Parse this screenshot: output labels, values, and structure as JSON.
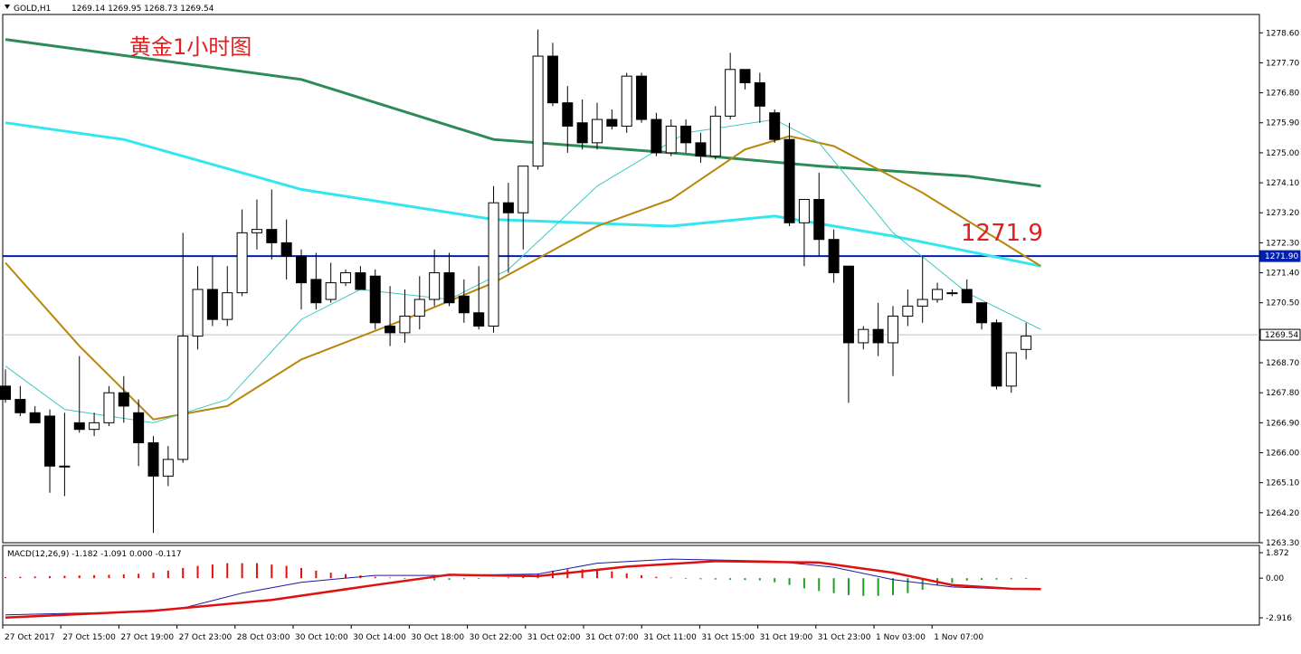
{
  "chart_data": [
    {
      "type": "candlestick",
      "symbol_label": "GOLD,H1",
      "ohlc_label": "1269.14 1269.95 1268.73 1269.54",
      "annotation": "黄金1小时图",
      "level_annotation": "1271.9",
      "ylim": [
        1263.3,
        1279.15
      ],
      "y_ticks": [
        "1278.60",
        "1277.70",
        "1276.80",
        "1275.90",
        "1275.00",
        "1274.10",
        "1273.20",
        "1272.30",
        "1271.40",
        "1270.50",
        "1269.60",
        "1268.70",
        "1267.80",
        "1266.90",
        "1266.00",
        "1265.10",
        "1264.20",
        "1263.30"
      ],
      "horizontal_line": {
        "value": 1271.9,
        "label": "1271.90",
        "color": "#0020b0"
      },
      "price_line": {
        "value": 1269.54,
        "label": "1269.54"
      },
      "x_labels": [
        "27 Oct 2017",
        "27 Oct 15:00",
        "27 Oct 19:00",
        "27 Oct 23:00",
        "28 Oct 03:00",
        "30 Oct 10:00",
        "30 Oct 14:00",
        "30 Oct 18:00",
        "30 Oct 22:00",
        "31 Oct 02:00",
        "31 Oct 07:00",
        "31 Oct 11:00",
        "31 Oct 15:00",
        "31 Oct 19:00",
        "31 Oct 23:00",
        "1 Nov 03:00",
        "1 Nov 07:00"
      ],
      "candles": [
        [
          1268.0,
          1268.5,
          1267.6,
          1267.5
        ],
        [
          1267.6,
          1268.0,
          1267.2,
          1267.1
        ],
        [
          1267.2,
          1267.4,
          1266.9,
          1267.1
        ],
        [
          1267.1,
          1267.3,
          1265.6,
          1264.8
        ],
        [
          1265.6,
          1267.2,
          1265.6,
          1264.7
        ],
        [
          1266.9,
          1268.9,
          1266.7,
          1266.6
        ],
        [
          1266.7,
          1267.2,
          1266.9,
          1266.5
        ],
        [
          1266.9,
          1268.0,
          1267.8,
          1266.8
        ],
        [
          1267.8,
          1268.3,
          1267.4,
          1266.9
        ],
        [
          1267.2,
          1267.6,
          1266.3,
          1265.6
        ],
        [
          1266.3,
          1266.5,
          1265.3,
          1263.6
        ],
        [
          1265.3,
          1266.2,
          1265.8,
          1265.0
        ],
        [
          1265.8,
          1272.6,
          1269.5,
          1265.7
        ],
        [
          1269.5,
          1271.6,
          1270.9,
          1269.1
        ],
        [
          1270.9,
          1271.9,
          1270.0,
          1269.8
        ],
        [
          1270.0,
          1271.6,
          1270.8,
          1269.8
        ],
        [
          1270.8,
          1273.3,
          1272.6,
          1270.7
        ],
        [
          1272.6,
          1273.6,
          1272.7,
          1272.1
        ],
        [
          1272.7,
          1273.9,
          1272.3,
          1271.8
        ],
        [
          1272.3,
          1273.0,
          1271.9,
          1271.2
        ],
        [
          1271.9,
          1272.1,
          1271.1,
          1270.3
        ],
        [
          1271.2,
          1272.0,
          1270.5,
          1270.3
        ],
        [
          1270.6,
          1271.7,
          1271.1,
          1270.5
        ],
        [
          1271.1,
          1271.5,
          1271.4,
          1271.0
        ],
        [
          1271.4,
          1271.6,
          1270.9,
          1270.9
        ],
        [
          1271.3,
          1271.5,
          1269.9,
          1269.7
        ],
        [
          1269.8,
          1271.0,
          1269.6,
          1269.2
        ],
        [
          1269.6,
          1270.9,
          1270.1,
          1269.3
        ],
        [
          1270.1,
          1271.3,
          1270.6,
          1269.7
        ],
        [
          1270.6,
          1272.1,
          1271.4,
          1270.4
        ],
        [
          1271.4,
          1272.0,
          1270.5,
          1270.4
        ],
        [
          1270.7,
          1271.2,
          1270.2,
          1269.9
        ],
        [
          1270.2,
          1271.6,
          1269.8,
          1269.7
        ],
        [
          1269.8,
          1274.0,
          1273.5,
          1269.6
        ],
        [
          1273.5,
          1274.1,
          1273.2,
          1271.4
        ],
        [
          1273.2,
          1274.6,
          1274.6,
          1272.1
        ],
        [
          1274.6,
          1278.7,
          1277.9,
          1274.5
        ],
        [
          1277.9,
          1278.3,
          1276.5,
          1276.4
        ],
        [
          1276.5,
          1277.0,
          1275.8,
          1275.0
        ],
        [
          1275.9,
          1276.6,
          1275.3,
          1275.1
        ],
        [
          1275.3,
          1276.5,
          1276.0,
          1275.1
        ],
        [
          1276.0,
          1276.3,
          1275.8,
          1275.7
        ],
        [
          1275.8,
          1277.4,
          1277.3,
          1275.6
        ],
        [
          1277.3,
          1277.4,
          1276.0,
          1275.9
        ],
        [
          1276.0,
          1276.2,
          1275.0,
          1274.9
        ],
        [
          1275.0,
          1276.0,
          1275.8,
          1274.9
        ],
        [
          1275.8,
          1276.0,
          1275.3,
          1275.0
        ],
        [
          1275.3,
          1275.6,
          1274.9,
          1274.7
        ],
        [
          1274.9,
          1276.4,
          1276.1,
          1274.8
        ],
        [
          1276.1,
          1278.0,
          1277.5,
          1276.0
        ],
        [
          1277.5,
          1277.5,
          1277.1,
          1276.9
        ],
        [
          1277.1,
          1277.4,
          1276.4,
          1275.9
        ],
        [
          1276.2,
          1276.3,
          1275.4,
          1275.3
        ],
        [
          1275.4,
          1275.9,
          1272.9,
          1272.8
        ],
        [
          1272.9,
          1273.5,
          1273.6,
          1271.6
        ],
        [
          1273.6,
          1274.4,
          1272.4,
          1271.9
        ],
        [
          1272.4,
          1272.7,
          1271.4,
          1271.1
        ],
        [
          1271.6,
          1271.6,
          1269.3,
          1267.5
        ],
        [
          1269.3,
          1269.8,
          1269.7,
          1269.1
        ],
        [
          1269.7,
          1270.5,
          1269.3,
          1268.9
        ],
        [
          1269.3,
          1270.4,
          1270.1,
          1268.3
        ],
        [
          1270.1,
          1270.9,
          1270.4,
          1269.8
        ],
        [
          1270.4,
          1271.9,
          1270.6,
          1269.9
        ],
        [
          1270.6,
          1271.1,
          1270.9,
          1270.5
        ],
        [
          1270.8,
          1270.9,
          1270.8,
          1270.7
        ],
        [
          1270.9,
          1271.2,
          1270.5,
          1270.5
        ],
        [
          1270.5,
          1270.5,
          1269.9,
          1269.7
        ],
        [
          1269.9,
          1270.0,
          1268.0,
          1267.9
        ],
        [
          1268.0,
          1269.0,
          1269.0,
          1267.8
        ],
        [
          1269.1,
          1269.9,
          1269.5,
          1268.8
        ]
      ],
      "moving_averages": [
        {
          "color": "#2e8b57",
          "width": 3,
          "points": [
            [
              0,
              1278.4
            ],
            [
              20,
              1277.2
            ],
            [
              33,
              1275.4
            ],
            [
              45,
              1275.0
            ],
            [
              55,
              1274.6
            ],
            [
              65,
              1274.3
            ],
            [
              70,
              1274.0
            ]
          ]
        },
        {
          "color": "#33e6f0",
          "width": 3,
          "points": [
            [
              0,
              1275.9
            ],
            [
              8,
              1275.4
            ],
            [
              20,
              1273.9
            ],
            [
              33,
              1273.0
            ],
            [
              45,
              1272.8
            ],
            [
              52,
              1273.1
            ],
            [
              60,
              1272.5
            ],
            [
              70,
              1271.6
            ]
          ]
        },
        {
          "color": "#b8860b",
          "width": 2,
          "points": [
            [
              0,
              1271.7
            ],
            [
              5,
              1269.2
            ],
            [
              10,
              1267.0
            ],
            [
              15,
              1267.4
            ],
            [
              20,
              1268.8
            ],
            [
              27,
              1270.0
            ],
            [
              33,
              1271.1
            ],
            [
              40,
              1272.8
            ],
            [
              45,
              1273.6
            ],
            [
              50,
              1275.1
            ],
            [
              53,
              1275.5
            ],
            [
              56,
              1275.2
            ],
            [
              62,
              1273.8
            ],
            [
              70,
              1271.6
            ]
          ]
        },
        {
          "color": "#40c8c0",
          "width": 1,
          "points": [
            [
              0,
              1268.6
            ],
            [
              4,
              1267.3
            ],
            [
              10,
              1266.9
            ],
            [
              15,
              1267.6
            ],
            [
              20,
              1270.0
            ],
            [
              24,
              1270.9
            ],
            [
              30,
              1270.6
            ],
            [
              34,
              1271.5
            ],
            [
              40,
              1274.0
            ],
            [
              46,
              1275.6
            ],
            [
              52,
              1276.0
            ],
            [
              55,
              1275.3
            ],
            [
              60,
              1272.6
            ],
            [
              65,
              1270.8
            ],
            [
              70,
              1269.7
            ]
          ]
        }
      ]
    },
    {
      "type": "macd",
      "label": "MACD(12,26,9) -1.182 -1.091 0.000 -0.117",
      "ylim": [
        -2.916,
        1.872
      ],
      "y_ticks": [
        "1.872",
        "0.00",
        "-2.916"
      ],
      "histogram": [
        0.08,
        0.1,
        0.12,
        0.15,
        0.18,
        0.2,
        0.22,
        0.25,
        0.28,
        0.32,
        0.4,
        0.55,
        0.75,
        0.9,
        1.0,
        1.1,
        1.1,
        1.1,
        1.0,
        0.9,
        0.75,
        0.55,
        0.4,
        0.3,
        0.2,
        0.1,
        0.04,
        -0.06,
        -0.12,
        -0.16,
        -0.12,
        -0.08,
        -0.06,
        -0.02,
        0.05,
        0.15,
        0.35,
        0.55,
        0.65,
        0.65,
        0.6,
        0.5,
        0.35,
        0.22,
        0.1,
        0.04,
        -0.05,
        -0.08,
        -0.1,
        -0.12,
        -0.14,
        -0.16,
        -0.3,
        -0.5,
        -0.75,
        -0.95,
        -1.1,
        -1.25,
        -1.3,
        -1.3,
        -1.25,
        -1.1,
        -0.85,
        -0.55,
        -0.35,
        -0.18,
        -0.12,
        -0.1,
        -0.08,
        -0.06
      ],
      "macd_line": {
        "color": "#1a1aa0",
        "points": [
          [
            0,
            -2.7
          ],
          [
            8,
            -2.5
          ],
          [
            12,
            -2.2
          ],
          [
            16,
            -1.1
          ],
          [
            20,
            -0.3
          ],
          [
            25,
            0.2
          ],
          [
            30,
            0.2
          ],
          [
            36,
            0.3
          ],
          [
            40,
            1.1
          ],
          [
            45,
            1.4
          ],
          [
            52,
            1.25
          ],
          [
            56,
            0.8
          ],
          [
            60,
            -0.1
          ],
          [
            64,
            -0.65
          ],
          [
            68,
            -0.8
          ],
          [
            70,
            -0.85
          ]
        ]
      },
      "signal_line": {
        "color": "#e01010",
        "points": [
          [
            0,
            -2.9
          ],
          [
            10,
            -2.4
          ],
          [
            18,
            -1.6
          ],
          [
            25,
            -0.5
          ],
          [
            30,
            0.25
          ],
          [
            36,
            0.15
          ],
          [
            42,
            0.85
          ],
          [
            48,
            1.25
          ],
          [
            55,
            1.15
          ],
          [
            60,
            0.4
          ],
          [
            64,
            -0.5
          ],
          [
            68,
            -0.78
          ],
          [
            70,
            -0.8
          ]
        ]
      }
    }
  ]
}
